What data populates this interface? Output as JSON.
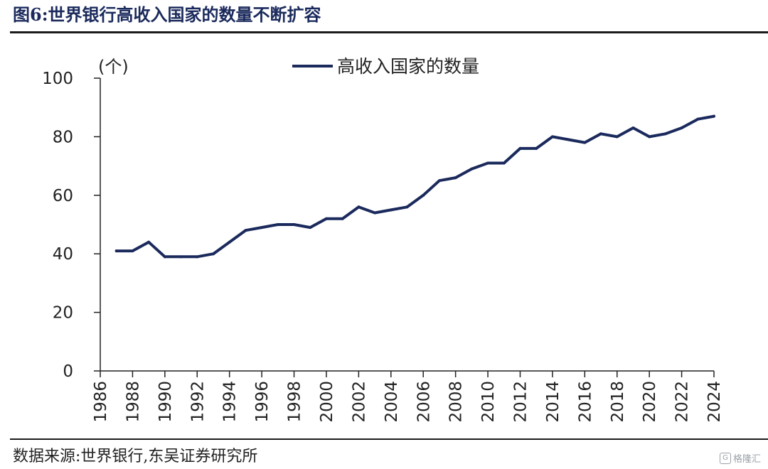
{
  "figure": {
    "title": "图6:世界银行高收入国家的数量不断扩容",
    "source": "数据来源:世界银行,东吴证券研究所",
    "watermark": "格隆汇"
  },
  "chart_data": {
    "type": "line",
    "title": "",
    "ylabel": "(个)",
    "xlabel": "",
    "ylim": [
      0,
      100
    ],
    "yticks": [
      0,
      20,
      40,
      60,
      80,
      100
    ],
    "xlim": [
      1986,
      2024
    ],
    "xticks": [
      1986,
      1988,
      1990,
      1992,
      1994,
      1996,
      1998,
      2000,
      2002,
      2004,
      2006,
      2008,
      2010,
      2012,
      2014,
      2016,
      2018,
      2020,
      2022,
      2024
    ],
    "legend_position": "top-center",
    "grid": false,
    "series": [
      {
        "name": "高收入国家的数量",
        "color": "#1b2a5c",
        "x": [
          1987,
          1988,
          1989,
          1990,
          1991,
          1992,
          1993,
          1994,
          1995,
          1996,
          1997,
          1998,
          1999,
          2000,
          2001,
          2002,
          2003,
          2004,
          2005,
          2006,
          2007,
          2008,
          2009,
          2010,
          2011,
          2012,
          2013,
          2014,
          2015,
          2016,
          2017,
          2018,
          2019,
          2020,
          2021,
          2022,
          2023,
          2024
        ],
        "values": [
          41,
          41,
          44,
          39,
          39,
          39,
          40,
          44,
          48,
          49,
          50,
          50,
          49,
          52,
          52,
          56,
          54,
          55,
          56,
          60,
          65,
          66,
          69,
          71,
          71,
          76,
          76,
          80,
          79,
          78,
          81,
          80,
          83,
          80,
          81,
          83,
          86,
          87
        ]
      }
    ]
  }
}
